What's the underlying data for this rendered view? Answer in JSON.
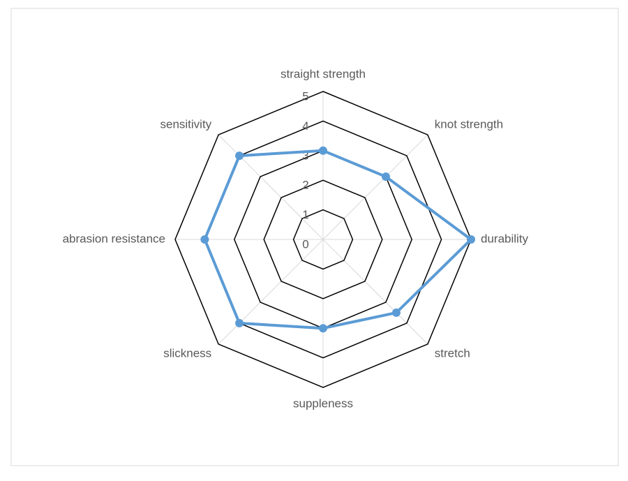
{
  "chart_data": {
    "type": "radar",
    "categories": [
      "straight strength",
      "knot strength",
      "durability",
      "stretch",
      "suppleness",
      "slickness",
      "abrasion resistance",
      "sensitivity"
    ],
    "series": [
      {
        "color": "#5b9bd5",
        "values": [
          3,
          3,
          5,
          3.5,
          3,
          4,
          4,
          4
        ]
      }
    ],
    "ylim": [
      0,
      5
    ],
    "yticks": [
      0,
      1,
      2,
      3,
      4,
      5
    ],
    "grid": true
  }
}
